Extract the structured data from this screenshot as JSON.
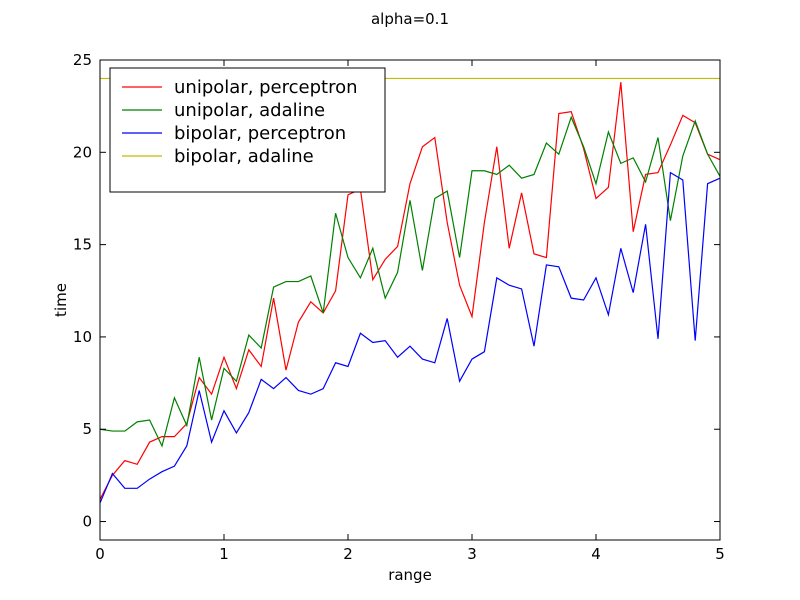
{
  "chart_data": {
    "type": "line",
    "title": "alpha=0.1",
    "xlabel": "range",
    "ylabel": "time",
    "xlim": [
      0,
      5
    ],
    "ylim": [
      -1,
      25
    ],
    "xticks": [
      0,
      1,
      2,
      3,
      4,
      5
    ],
    "yticks": [
      0,
      5,
      10,
      15,
      20,
      25
    ],
    "grid": false,
    "legend_position": "top-left",
    "x": [
      0,
      0.1,
      0.2,
      0.3,
      0.4,
      0.5,
      0.6,
      0.7,
      0.8,
      0.9,
      1.0,
      1.1,
      1.2,
      1.3,
      1.4,
      1.5,
      1.6,
      1.7,
      1.8,
      1.9,
      2.0,
      2.1,
      2.2,
      2.3,
      2.4,
      2.5,
      2.6,
      2.7,
      2.8,
      2.9,
      3.0,
      3.1,
      3.2,
      3.3,
      3.4,
      3.5,
      3.6,
      3.7,
      3.8,
      3.9,
      4.0,
      4.1,
      4.2,
      4.3,
      4.4,
      4.5,
      4.6,
      4.7,
      4.8,
      4.9,
      5.0
    ],
    "series": [
      {
        "name": "unipolar, perceptron",
        "color": "#ff0000",
        "values": [
          1.2,
          2.5,
          3.3,
          3.1,
          4.3,
          4.6,
          4.6,
          5.3,
          7.8,
          6.9,
          8.9,
          7.2,
          9.3,
          8.4,
          12.1,
          8.2,
          10.8,
          11.9,
          11.3,
          12.5,
          17.7,
          18.0,
          13.1,
          14.2,
          14.9,
          18.3,
          20.3,
          20.8,
          16.2,
          12.8,
          11.1,
          16.2,
          20.3,
          14.8,
          17.8,
          14.5,
          14.3,
          22.1,
          22.2,
          20.2,
          17.5,
          18.1,
          23.8,
          15.7,
          18.8,
          18.9,
          20.4,
          22.0,
          21.6,
          19.9,
          19.6
        ]
      },
      {
        "name": "unipolar, adaline",
        "color": "#008000",
        "values": [
          5.0,
          4.9,
          4.9,
          5.4,
          5.5,
          4.1,
          6.7,
          5.2,
          8.9,
          5.5,
          8.3,
          7.6,
          10.1,
          9.4,
          12.7,
          13.0,
          13.0,
          13.3,
          11.3,
          16.7,
          14.3,
          13.2,
          14.8,
          12.1,
          13.5,
          17.4,
          13.6,
          17.5,
          17.9,
          14.3,
          19.0,
          19.0,
          18.8,
          19.3,
          18.6,
          18.8,
          20.5,
          19.9,
          21.9,
          20.3,
          18.3,
          21.1,
          19.4,
          19.7,
          18.4,
          20.8,
          16.3,
          19.8,
          21.7,
          19.9,
          18.7
        ]
      },
      {
        "name": "bipolar, perceptron",
        "color": "#0000ff",
        "values": [
          1.0,
          2.6,
          1.8,
          1.8,
          2.3,
          2.7,
          3.0,
          4.1,
          7.1,
          4.3,
          6.0,
          4.8,
          5.9,
          7.7,
          7.2,
          7.8,
          7.1,
          6.9,
          7.2,
          8.6,
          8.4,
          10.2,
          9.7,
          9.8,
          8.9,
          9.5,
          8.8,
          8.6,
          11.0,
          7.6,
          8.8,
          9.2,
          13.2,
          12.8,
          12.6,
          9.5,
          13.9,
          13.8,
          12.1,
          12.0,
          13.2,
          11.2,
          14.8,
          12.4,
          16.1,
          9.9,
          18.9,
          18.5,
          9.8,
          18.3,
          18.6
        ]
      },
      {
        "name": "bipolar, adaline",
        "color": "#bfbf00",
        "values": [
          24,
          24,
          24,
          24,
          24,
          24,
          24,
          24,
          24,
          24,
          24,
          24,
          24,
          24,
          24,
          24,
          24,
          24,
          24,
          24,
          24,
          24,
          24,
          24,
          24,
          24,
          24,
          24,
          24,
          24,
          24,
          24,
          24,
          24,
          24,
          24,
          24,
          24,
          24,
          24,
          24,
          24,
          24,
          24,
          24,
          24,
          24,
          24,
          24,
          24,
          24
        ]
      }
    ]
  }
}
